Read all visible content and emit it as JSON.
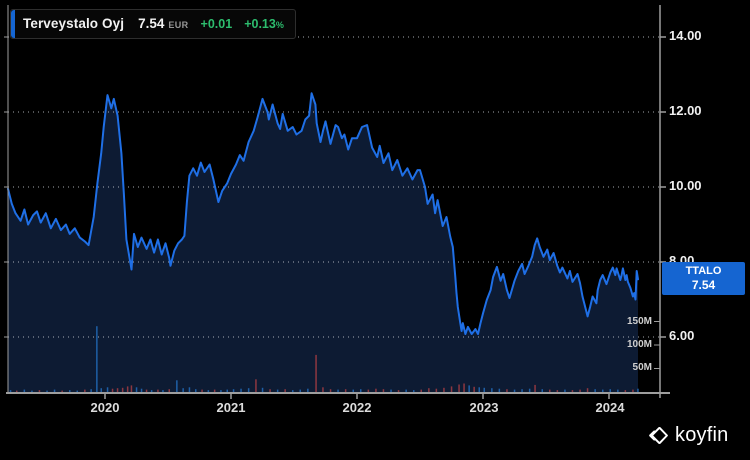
{
  "ticker": {
    "name": "Terveystalo Oyj",
    "price": "7.54",
    "currency": "EUR",
    "change": "+0.01",
    "change_pct": "+0.13",
    "pct_symbol": "%"
  },
  "badge": {
    "symbol": "TTALO",
    "value": "7.54"
  },
  "watermark": {
    "brand": "koyfin"
  },
  "colors": {
    "background": "#000000",
    "line": "#1f6fe6",
    "area_fill": "#0d1b33",
    "badge_blue": "#1565d1",
    "gain_green": "#2dbd6e",
    "axis": "#9e9e9e",
    "grid_dots": "#cdd2d9",
    "volume_up": "#1e5fa6",
    "volume_down": "#8d3740"
  },
  "chart_data": {
    "type": "area",
    "title": "Terveystalo Oyj price with volume",
    "legend_position": "top-left",
    "grid": "dotted-horizontal",
    "x_range": [
      2019.23,
      2024.4
    ],
    "y_range": [
      4.5,
      14.85
    ],
    "x_ticks": [
      {
        "label": "2020",
        "t": 2020
      },
      {
        "label": "2021",
        "t": 2021
      },
      {
        "label": "2022",
        "t": 2022
      },
      {
        "label": "2023",
        "t": 2023
      },
      {
        "label": "2024",
        "t": 2024
      }
    ],
    "y_ticks": [
      {
        "label": "14.00",
        "v": 14
      },
      {
        "label": "12.00",
        "v": 12
      },
      {
        "label": "10.00",
        "v": 10
      },
      {
        "label": "8.00",
        "v": 8
      },
      {
        "label": "6.00",
        "v": 6
      }
    ],
    "volume_ticks": [
      {
        "label": "150M",
        "v": 150
      },
      {
        "label": "100M",
        "v": 100
      },
      {
        "label": "50M",
        "v": 50
      }
    ],
    "series": {
      "name": "Terveystalo Oyj",
      "unit": "EUR",
      "last": 7.54,
      "points": [
        [
          2019.23,
          9.95
        ],
        [
          2019.26,
          9.55
        ],
        [
          2019.29,
          9.3
        ],
        [
          2019.33,
          9.1
        ],
        [
          2019.36,
          9.4
        ],
        [
          2019.39,
          9.0
        ],
        [
          2019.43,
          9.25
        ],
        [
          2019.46,
          9.35
        ],
        [
          2019.49,
          9.05
        ],
        [
          2019.53,
          9.3
        ],
        [
          2019.57,
          8.9
        ],
        [
          2019.61,
          9.15
        ],
        [
          2019.65,
          8.85
        ],
        [
          2019.69,
          9.0
        ],
        [
          2019.72,
          8.75
        ],
        [
          2019.76,
          8.9
        ],
        [
          2019.8,
          8.65
        ],
        [
          2019.84,
          8.55
        ],
        [
          2019.87,
          8.45
        ],
        [
          2019.91,
          9.2
        ],
        [
          2019.94,
          10.1
        ],
        [
          2019.97,
          10.9
        ],
        [
          2019.99,
          11.6
        ],
        [
          2020.02,
          12.45
        ],
        [
          2020.05,
          12.1
        ],
        [
          2020.07,
          12.35
        ],
        [
          2020.1,
          11.9
        ],
        [
          2020.13,
          10.9
        ],
        [
          2020.15,
          9.8
        ],
        [
          2020.17,
          8.6
        ],
        [
          2020.21,
          7.8
        ],
        [
          2020.23,
          8.75
        ],
        [
          2020.26,
          8.4
        ],
        [
          2020.29,
          8.65
        ],
        [
          2020.33,
          8.35
        ],
        [
          2020.36,
          8.6
        ],
        [
          2020.39,
          8.25
        ],
        [
          2020.42,
          8.6
        ],
        [
          2020.45,
          8.2
        ],
        [
          2020.48,
          8.5
        ],
        [
          2020.51,
          8.1
        ],
        [
          2020.52,
          7.9
        ],
        [
          2020.55,
          8.3
        ],
        [
          2020.58,
          8.5
        ],
        [
          2020.61,
          8.6
        ],
        [
          2020.63,
          8.7
        ],
        [
          2020.65,
          9.6
        ],
        [
          2020.67,
          10.3
        ],
        [
          2020.7,
          10.5
        ],
        [
          2020.73,
          10.3
        ],
        [
          2020.76,
          10.65
        ],
        [
          2020.79,
          10.4
        ],
        [
          2020.83,
          10.6
        ],
        [
          2020.86,
          10.2
        ],
        [
          2020.9,
          9.6
        ],
        [
          2020.93,
          9.9
        ],
        [
          2020.97,
          10.1
        ],
        [
          2021.0,
          10.35
        ],
        [
          2021.04,
          10.6
        ],
        [
          2021.07,
          10.85
        ],
        [
          2021.1,
          10.7
        ],
        [
          2021.14,
          11.2
        ],
        [
          2021.18,
          11.5
        ],
        [
          2021.21,
          11.85
        ],
        [
          2021.25,
          12.35
        ],
        [
          2021.29,
          12.0
        ],
        [
          2021.3,
          11.8
        ],
        [
          2021.33,
          12.2
        ],
        [
          2021.37,
          11.7
        ],
        [
          2021.39,
          11.55
        ],
        [
          2021.41,
          11.95
        ],
        [
          2021.45,
          11.5
        ],
        [
          2021.49,
          11.6
        ],
        [
          2021.52,
          11.4
        ],
        [
          2021.56,
          11.5
        ],
        [
          2021.59,
          11.8
        ],
        [
          2021.62,
          11.9
        ],
        [
          2021.64,
          12.5
        ],
        [
          2021.67,
          12.2
        ],
        [
          2021.68,
          11.7
        ],
        [
          2021.71,
          11.2
        ],
        [
          2021.73,
          11.5
        ],
        [
          2021.75,
          11.75
        ],
        [
          2021.79,
          11.15
        ],
        [
          2021.83,
          11.65
        ],
        [
          2021.85,
          11.6
        ],
        [
          2021.88,
          11.3
        ],
        [
          2021.9,
          11.4
        ],
        [
          2021.93,
          11.0
        ],
        [
          2021.96,
          11.3
        ],
        [
          2022.0,
          11.3
        ],
        [
          2022.04,
          11.6
        ],
        [
          2022.08,
          11.65
        ],
        [
          2022.12,
          11.05
        ],
        [
          2022.16,
          10.8
        ],
        [
          2022.18,
          11.1
        ],
        [
          2022.21,
          10.64
        ],
        [
          2022.25,
          10.9
        ],
        [
          2022.28,
          10.45
        ],
        [
          2022.32,
          10.72
        ],
        [
          2022.36,
          10.3
        ],
        [
          2022.4,
          10.5
        ],
        [
          2022.44,
          10.2
        ],
        [
          2022.48,
          10.45
        ],
        [
          2022.5,
          10.45
        ],
        [
          2022.54,
          10.0
        ],
        [
          2022.56,
          9.55
        ],
        [
          2022.6,
          9.8
        ],
        [
          2022.62,
          9.3
        ],
        [
          2022.64,
          9.65
        ],
        [
          2022.68,
          8.96
        ],
        [
          2022.71,
          9.2
        ],
        [
          2022.74,
          8.68
        ],
        [
          2022.76,
          8.4
        ],
        [
          2022.78,
          7.6
        ],
        [
          2022.79,
          7.17
        ],
        [
          2022.8,
          6.8
        ],
        [
          2022.82,
          6.37
        ],
        [
          2022.83,
          6.16
        ],
        [
          2022.84,
          6.37
        ],
        [
          2022.86,
          6.08
        ],
        [
          2022.88,
          6.27
        ],
        [
          2022.91,
          6.08
        ],
        [
          2022.94,
          6.21
        ],
        [
          2022.96,
          6.08
        ],
        [
          2022.98,
          6.37
        ],
        [
          2023.0,
          6.63
        ],
        [
          2023.03,
          6.99
        ],
        [
          2023.06,
          7.25
        ],
        [
          2023.08,
          7.6
        ],
        [
          2023.11,
          7.87
        ],
        [
          2023.14,
          7.5
        ],
        [
          2023.16,
          7.68
        ],
        [
          2023.19,
          7.25
        ],
        [
          2023.21,
          7.04
        ],
        [
          2023.25,
          7.5
        ],
        [
          2023.28,
          7.76
        ],
        [
          2023.31,
          7.95
        ],
        [
          2023.33,
          7.68
        ],
        [
          2023.36,
          7.9
        ],
        [
          2023.39,
          8.14
        ],
        [
          2023.41,
          8.45
        ],
        [
          2023.43,
          8.63
        ],
        [
          2023.45,
          8.4
        ],
        [
          2023.48,
          8.14
        ],
        [
          2023.51,
          8.33
        ],
        [
          2023.53,
          8.05
        ],
        [
          2023.56,
          8.24
        ],
        [
          2023.59,
          7.9
        ],
        [
          2023.61,
          7.72
        ],
        [
          2023.63,
          7.85
        ],
        [
          2023.67,
          7.56
        ],
        [
          2023.69,
          7.76
        ],
        [
          2023.71,
          7.47
        ],
        [
          2023.75,
          7.68
        ],
        [
          2023.77,
          7.44
        ],
        [
          2023.79,
          7.08
        ],
        [
          2023.83,
          6.55
        ],
        [
          2023.85,
          6.8
        ],
        [
          2023.87,
          7.08
        ],
        [
          2023.9,
          6.9
        ],
        [
          2023.91,
          7.25
        ],
        [
          2023.93,
          7.52
        ],
        [
          2023.95,
          7.65
        ],
        [
          2023.98,
          7.41
        ],
        [
          2024.01,
          7.72
        ],
        [
          2024.03,
          7.85
        ],
        [
          2024.05,
          7.65
        ],
        [
          2024.06,
          7.83
        ],
        [
          2024.09,
          7.52
        ],
        [
          2024.1,
          7.65
        ],
        [
          2024.11,
          7.83
        ],
        [
          2024.13,
          7.52
        ],
        [
          2024.14,
          7.65
        ],
        [
          2024.15,
          7.47
        ],
        [
          2024.17,
          7.31
        ],
        [
          2024.19,
          7.08
        ],
        [
          2024.2,
          7.17
        ],
        [
          2024.21,
          7.0
        ],
        [
          2024.22,
          7.76
        ],
        [
          2024.23,
          7.54
        ]
      ]
    },
    "volume": {
      "unit": "M shares",
      "bars": [
        [
          2019.25,
          4,
          "u"
        ],
        [
          2019.3,
          3,
          "d"
        ],
        [
          2019.36,
          5,
          "u"
        ],
        [
          2019.42,
          3,
          "u"
        ],
        [
          2019.48,
          4,
          "d"
        ],
        [
          2019.54,
          3,
          "u"
        ],
        [
          2019.6,
          5,
          "u"
        ],
        [
          2019.66,
          3,
          "d"
        ],
        [
          2019.72,
          4,
          "u"
        ],
        [
          2019.78,
          3,
          "u"
        ],
        [
          2019.84,
          5,
          "d"
        ],
        [
          2019.89,
          6,
          "u"
        ],
        [
          2019.935,
          140,
          "u"
        ],
        [
          2019.97,
          8,
          "u"
        ],
        [
          2020.02,
          10,
          "u"
        ],
        [
          2020.06,
          7,
          "d"
        ],
        [
          2020.1,
          8,
          "d"
        ],
        [
          2020.14,
          9,
          "d"
        ],
        [
          2020.18,
          12,
          "d"
        ],
        [
          2020.21,
          14,
          "d"
        ],
        [
          2020.25,
          10,
          "u"
        ],
        [
          2020.29,
          7,
          "u"
        ],
        [
          2020.33,
          5,
          "d"
        ],
        [
          2020.37,
          4,
          "u"
        ],
        [
          2020.42,
          5,
          "d"
        ],
        [
          2020.46,
          4,
          "u"
        ],
        [
          2020.51,
          6,
          "d"
        ],
        [
          2020.57,
          25,
          "u"
        ],
        [
          2020.62,
          8,
          "u"
        ],
        [
          2020.67,
          10,
          "u"
        ],
        [
          2020.72,
          6,
          "u"
        ],
        [
          2020.77,
          5,
          "d"
        ],
        [
          2020.82,
          4,
          "u"
        ],
        [
          2020.87,
          5,
          "d"
        ],
        [
          2020.92,
          4,
          "u"
        ],
        [
          2020.97,
          5,
          "u"
        ],
        [
          2021.02,
          6,
          "u"
        ],
        [
          2021.08,
          7,
          "u"
        ],
        [
          2021.14,
          8,
          "u"
        ],
        [
          2021.198,
          27,
          "d"
        ],
        [
          2021.25,
          9,
          "u"
        ],
        [
          2021.31,
          6,
          "d"
        ],
        [
          2021.37,
          5,
          "u"
        ],
        [
          2021.43,
          6,
          "d"
        ],
        [
          2021.49,
          4,
          "u"
        ],
        [
          2021.55,
          5,
          "u"
        ],
        [
          2021.61,
          7,
          "u"
        ],
        [
          2021.675,
          79,
          "d"
        ],
        [
          2021.73,
          10,
          "d"
        ],
        [
          2021.79,
          6,
          "d"
        ],
        [
          2021.85,
          5,
          "u"
        ],
        [
          2021.91,
          6,
          "d"
        ],
        [
          2021.97,
          5,
          "u"
        ],
        [
          2022.03,
          6,
          "u"
        ],
        [
          2022.09,
          5,
          "d"
        ],
        [
          2022.15,
          7,
          "d"
        ],
        [
          2022.21,
          6,
          "d"
        ],
        [
          2022.27,
          5,
          "u"
        ],
        [
          2022.33,
          4,
          "d"
        ],
        [
          2022.39,
          5,
          "u"
        ],
        [
          2022.45,
          4,
          "u"
        ],
        [
          2022.51,
          5,
          "d"
        ],
        [
          2022.57,
          8,
          "d"
        ],
        [
          2022.63,
          7,
          "d"
        ],
        [
          2022.69,
          9,
          "d"
        ],
        [
          2022.75,
          12,
          "d"
        ],
        [
          2022.81,
          16,
          "d"
        ],
        [
          2022.85,
          18,
          "d"
        ],
        [
          2022.89,
          14,
          "u"
        ],
        [
          2022.93,
          11,
          "d"
        ],
        [
          2022.97,
          10,
          "u"
        ],
        [
          2023.01,
          9,
          "u"
        ],
        [
          2023.07,
          8,
          "u"
        ],
        [
          2023.13,
          7,
          "u"
        ],
        [
          2023.19,
          6,
          "d"
        ],
        [
          2023.25,
          5,
          "u"
        ],
        [
          2023.31,
          6,
          "u"
        ],
        [
          2023.37,
          7,
          "u"
        ],
        [
          2023.413,
          15,
          "d"
        ],
        [
          2023.47,
          6,
          "u"
        ],
        [
          2023.53,
          5,
          "d"
        ],
        [
          2023.59,
          4,
          "d"
        ],
        [
          2023.65,
          5,
          "u"
        ],
        [
          2023.71,
          4,
          "d"
        ],
        [
          2023.77,
          5,
          "d"
        ],
        [
          2023.83,
          8,
          "d"
        ],
        [
          2023.89,
          6,
          "u"
        ],
        [
          2023.95,
          5,
          "u"
        ],
        [
          2024.01,
          6,
          "u"
        ],
        [
          2024.07,
          5,
          "u"
        ],
        [
          2024.13,
          4,
          "d"
        ],
        [
          2024.19,
          5,
          "d"
        ],
        [
          2024.23,
          7,
          "u"
        ]
      ]
    }
  }
}
